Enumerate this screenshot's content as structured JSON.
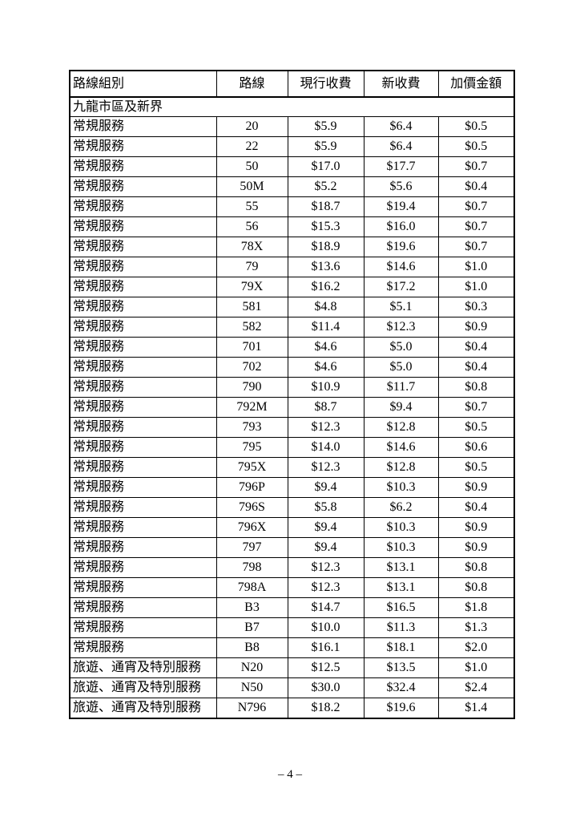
{
  "document": {
    "page_number": "– 4 –"
  },
  "table": {
    "headers": [
      "路線組別",
      "路線",
      "現行收費",
      "新收費",
      "加價金額"
    ],
    "section_title": "九龍市區及新界",
    "rows": [
      {
        "group": "常規服務",
        "route": "20",
        "current_fare": "$5.9",
        "new_fare": "$6.4",
        "increase": "$0.5"
      },
      {
        "group": "常規服務",
        "route": "22",
        "current_fare": "$5.9",
        "new_fare": "$6.4",
        "increase": "$0.5"
      },
      {
        "group": "常規服務",
        "route": "50",
        "current_fare": "$17.0",
        "new_fare": "$17.7",
        "increase": "$0.7"
      },
      {
        "group": "常規服務",
        "route": "50M",
        "current_fare": "$5.2",
        "new_fare": "$5.6",
        "increase": "$0.4"
      },
      {
        "group": "常規服務",
        "route": "55",
        "current_fare": "$18.7",
        "new_fare": "$19.4",
        "increase": "$0.7"
      },
      {
        "group": "常規服務",
        "route": "56",
        "current_fare": "$15.3",
        "new_fare": "$16.0",
        "increase": "$0.7"
      },
      {
        "group": "常規服務",
        "route": "78X",
        "current_fare": "$18.9",
        "new_fare": "$19.6",
        "increase": "$0.7"
      },
      {
        "group": "常規服務",
        "route": "79",
        "current_fare": "$13.6",
        "new_fare": "$14.6",
        "increase": "$1.0"
      },
      {
        "group": "常規服務",
        "route": "79X",
        "current_fare": "$16.2",
        "new_fare": "$17.2",
        "increase": "$1.0"
      },
      {
        "group": "常規服務",
        "route": "581",
        "current_fare": "$4.8",
        "new_fare": "$5.1",
        "increase": "$0.3"
      },
      {
        "group": "常規服務",
        "route": "582",
        "current_fare": "$11.4",
        "new_fare": "$12.3",
        "increase": "$0.9"
      },
      {
        "group": "常規服務",
        "route": "701",
        "current_fare": "$4.6",
        "new_fare": "$5.0",
        "increase": "$0.4"
      },
      {
        "group": "常規服務",
        "route": "702",
        "current_fare": "$4.6",
        "new_fare": "$5.0",
        "increase": "$0.4"
      },
      {
        "group": "常規服務",
        "route": "790",
        "current_fare": "$10.9",
        "new_fare": "$11.7",
        "increase": "$0.8"
      },
      {
        "group": "常規服務",
        "route": "792M",
        "current_fare": "$8.7",
        "new_fare": "$9.4",
        "increase": "$0.7"
      },
      {
        "group": "常規服務",
        "route": "793",
        "current_fare": "$12.3",
        "new_fare": "$12.8",
        "increase": "$0.5"
      },
      {
        "group": "常規服務",
        "route": "795",
        "current_fare": "$14.0",
        "new_fare": "$14.6",
        "increase": "$0.6"
      },
      {
        "group": "常規服務",
        "route": "795X",
        "current_fare": "$12.3",
        "new_fare": "$12.8",
        "increase": "$0.5"
      },
      {
        "group": "常規服務",
        "route": "796P",
        "current_fare": "$9.4",
        "new_fare": "$10.3",
        "increase": "$0.9"
      },
      {
        "group": "常規服務",
        "route": "796S",
        "current_fare": "$5.8",
        "new_fare": "$6.2",
        "increase": "$0.4"
      },
      {
        "group": "常規服務",
        "route": "796X",
        "current_fare": "$9.4",
        "new_fare": "$10.3",
        "increase": "$0.9"
      },
      {
        "group": "常規服務",
        "route": "797",
        "current_fare": "$9.4",
        "new_fare": "$10.3",
        "increase": "$0.9"
      },
      {
        "group": "常規服務",
        "route": "798",
        "current_fare": "$12.3",
        "new_fare": "$13.1",
        "increase": "$0.8"
      },
      {
        "group": "常規服務",
        "route": "798A",
        "current_fare": "$12.3",
        "new_fare": "$13.1",
        "increase": "$0.8"
      },
      {
        "group": "常規服務",
        "route": "B3",
        "current_fare": "$14.7",
        "new_fare": "$16.5",
        "increase": "$1.8"
      },
      {
        "group": "常規服務",
        "route": "B7",
        "current_fare": "$10.0",
        "new_fare": "$11.3",
        "increase": "$1.3"
      },
      {
        "group": "常規服務",
        "route": "B8",
        "current_fare": "$16.1",
        "new_fare": "$18.1",
        "increase": "$2.0"
      },
      {
        "group": "旅遊、通宵及特別服務",
        "route": "N20",
        "current_fare": "$12.5",
        "new_fare": "$13.5",
        "increase": "$1.0"
      },
      {
        "group": "旅遊、通宵及特別服務",
        "route": "N50",
        "current_fare": "$30.0",
        "new_fare": "$32.4",
        "increase": "$2.4"
      },
      {
        "group": "旅遊、通宵及特別服務",
        "route": "N796",
        "current_fare": "$18.2",
        "new_fare": "$19.6",
        "increase": "$1.4"
      }
    ]
  }
}
